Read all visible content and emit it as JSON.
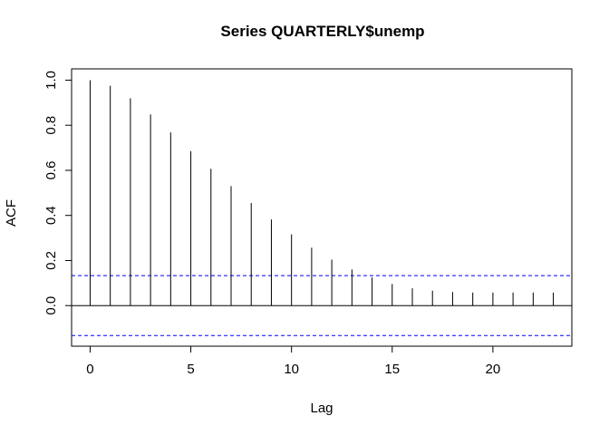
{
  "chart_data": {
    "type": "bar",
    "title": "Series  QUARTERLY$unemp",
    "xlabel": "Lag",
    "ylabel": "ACF",
    "x": [
      0,
      1,
      2,
      3,
      4,
      5,
      6,
      7,
      8,
      9,
      10,
      11,
      12,
      13,
      14,
      15,
      16,
      17,
      18,
      19,
      20,
      21,
      22,
      23
    ],
    "values": [
      1.0,
      0.975,
      0.92,
      0.848,
      0.768,
      0.685,
      0.607,
      0.53,
      0.455,
      0.382,
      0.316,
      0.257,
      0.204,
      0.16,
      0.125,
      0.096,
      0.077,
      0.066,
      0.06,
      0.058,
      0.058,
      0.058,
      0.058,
      0.058
    ],
    "xlim": [
      -0.92,
      23.92
    ],
    "ylim": [
      -0.18,
      1.05
    ],
    "xticks": [
      0,
      5,
      10,
      15,
      20
    ],
    "xtick_labels": [
      "0",
      "5",
      "10",
      "15",
      "20"
    ],
    "yticks": [
      0.0,
      0.2,
      0.4,
      0.6,
      0.8,
      1.0
    ],
    "ytick_labels": [
      "0.0",
      "0.2",
      "0.4",
      "0.6",
      "0.8",
      "1.0"
    ],
    "confidence_bound": 0.133,
    "confidence_color": "#0000FF",
    "stem_color": "#000000",
    "grid": false
  }
}
